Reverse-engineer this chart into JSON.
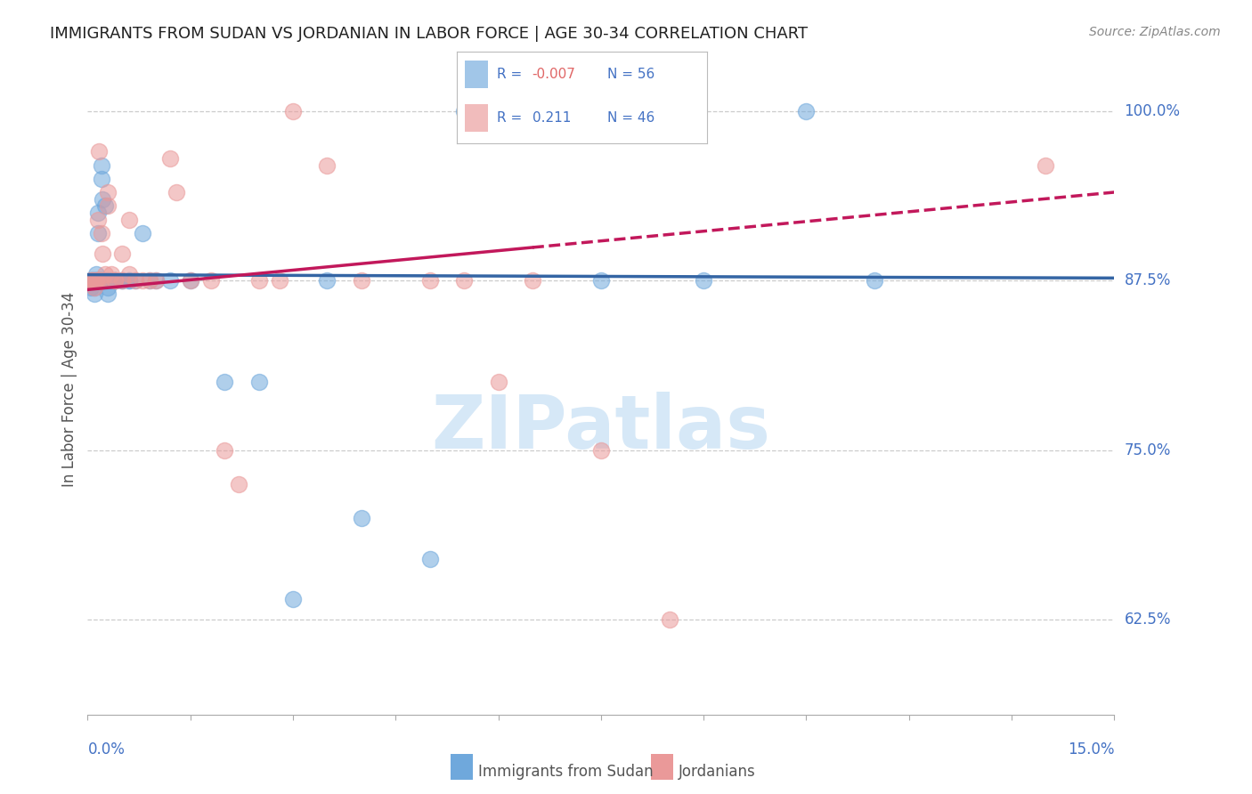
{
  "title": "IMMIGRANTS FROM SUDAN VS JORDANIAN IN LABOR FORCE | AGE 30-34 CORRELATION CHART",
  "source": "Source: ZipAtlas.com",
  "ylabel": "In Labor Force | Age 30-34",
  "ytick_values": [
    0.625,
    0.75,
    0.875,
    1.0
  ],
  "ytick_labels": [
    "62.5%",
    "75.0%",
    "87.5%",
    "100.0%"
  ],
  "xlim": [
    0.0,
    0.15
  ],
  "ylim": [
    0.555,
    1.035
  ],
  "blue_color": "#6fa8dc",
  "pink_color": "#ea9999",
  "trend_blue_color": "#3465a4",
  "trend_pink_color": "#c2185b",
  "axis_label_color": "#4472c4",
  "title_color": "#222222",
  "grid_color": "#cccccc",
  "watermark_text": "ZIPatlas",
  "watermark_color": "#d6e8f7",
  "R_blue": -0.007,
  "N_blue": 56,
  "R_pink": 0.211,
  "N_pink": 46,
  "blue_x": [
    0.0005,
    0.0005,
    0.0006,
    0.0007,
    0.0008,
    0.001,
    0.001,
    0.001,
    0.0012,
    0.0012,
    0.0013,
    0.0014,
    0.0015,
    0.0015,
    0.0016,
    0.0017,
    0.0018,
    0.002,
    0.002,
    0.002,
    0.0022,
    0.0022,
    0.0025,
    0.0025,
    0.003,
    0.003,
    0.003,
    0.003,
    0.0035,
    0.004,
    0.004,
    0.004,
    0.005,
    0.005,
    0.006,
    0.006,
    0.007,
    0.008,
    0.009,
    0.01,
    0.012,
    0.015,
    0.02,
    0.025,
    0.03,
    0.035,
    0.04,
    0.05,
    0.055,
    0.06,
    0.065,
    0.07,
    0.075,
    0.09,
    0.105,
    0.115
  ],
  "blue_y": [
    0.875,
    0.87,
    0.875,
    0.875,
    0.875,
    0.875,
    0.87,
    0.865,
    0.88,
    0.875,
    0.875,
    0.875,
    0.925,
    0.91,
    0.875,
    0.875,
    0.875,
    0.96,
    0.95,
    0.875,
    0.935,
    0.875,
    0.93,
    0.875,
    0.875,
    0.87,
    0.865,
    0.875,
    0.875,
    0.875,
    0.875,
    0.875,
    0.875,
    0.875,
    0.875,
    0.875,
    0.875,
    0.91,
    0.875,
    0.875,
    0.875,
    0.875,
    0.8,
    0.8,
    0.64,
    0.875,
    0.7,
    0.67,
    1.0,
    1.0,
    1.0,
    1.0,
    0.875,
    0.875,
    1.0,
    0.875
  ],
  "pink_x": [
    0.0005,
    0.0006,
    0.0007,
    0.001,
    0.001,
    0.0012,
    0.0013,
    0.0015,
    0.0015,
    0.0016,
    0.0018,
    0.002,
    0.002,
    0.0022,
    0.0025,
    0.003,
    0.003,
    0.0035,
    0.004,
    0.004,
    0.005,
    0.005,
    0.006,
    0.006,
    0.007,
    0.008,
    0.009,
    0.01,
    0.012,
    0.013,
    0.015,
    0.018,
    0.02,
    0.022,
    0.025,
    0.028,
    0.03,
    0.035,
    0.04,
    0.05,
    0.055,
    0.06,
    0.065,
    0.075,
    0.085,
    0.14
  ],
  "pink_y": [
    0.875,
    0.875,
    0.875,
    0.875,
    0.87,
    0.875,
    0.875,
    0.92,
    0.875,
    0.97,
    0.875,
    0.91,
    0.875,
    0.895,
    0.88,
    0.94,
    0.93,
    0.88,
    0.875,
    0.875,
    0.895,
    0.875,
    0.92,
    0.88,
    0.875,
    0.875,
    0.875,
    0.875,
    0.965,
    0.94,
    0.875,
    0.875,
    0.75,
    0.725,
    0.875,
    0.875,
    1.0,
    0.96,
    0.875,
    0.875,
    0.875,
    0.8,
    0.875,
    0.75,
    0.625,
    0.96
  ],
  "legend_r1": "R = -0.007",
  "legend_n1": "N = 56",
  "legend_r2": "R =  0.211",
  "legend_n2": "N = 46"
}
